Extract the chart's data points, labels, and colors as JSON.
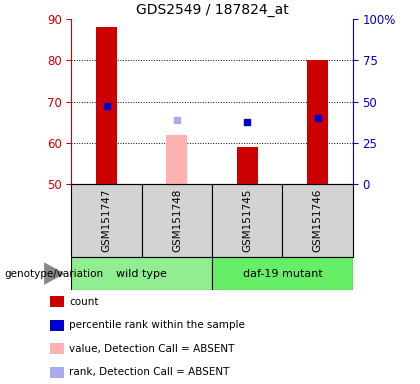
{
  "title": "GDS2549 / 187824_at",
  "samples": [
    "GSM151747",
    "GSM151748",
    "GSM151745",
    "GSM151746"
  ],
  "groups": [
    [
      "wild type",
      0,
      2
    ],
    [
      "daf-19 mutant",
      2,
      4
    ]
  ],
  "group_colors": [
    "#90ee90",
    "#66ee66"
  ],
  "bar_bottom": 50,
  "count_values": [
    88,
    null,
    59,
    80
  ],
  "count_color": "#cc0000",
  "absent_value_values": [
    null,
    62,
    null,
    null
  ],
  "absent_value_color": "#ffb0b0",
  "percentile_values": [
    69,
    null,
    65,
    66
  ],
  "percentile_color": "#0000cc",
  "absent_rank_values": [
    null,
    65.5,
    null,
    null
  ],
  "absent_rank_color": "#aaaaee",
  "ylim": [
    50,
    90
  ],
  "yticks": [
    50,
    60,
    70,
    80,
    90
  ],
  "y2_ticks": [
    0,
    25,
    50,
    75,
    100
  ],
  "y2_labels": [
    "0",
    "25",
    "50",
    "75",
    "100%"
  ],
  "bar_width": 0.3,
  "marker_size": 5,
  "legend_items": [
    {
      "label": "count",
      "color": "#cc0000"
    },
    {
      "label": "percentile rank within the sample",
      "color": "#0000cc"
    },
    {
      "label": "value, Detection Call = ABSENT",
      "color": "#ffb0b0"
    },
    {
      "label": "rank, Detection Call = ABSENT",
      "color": "#aaaaee"
    }
  ],
  "genotype_label": "genotype/variation",
  "left_label_color": "#cc0000",
  "right_label_color": "#0000cc"
}
